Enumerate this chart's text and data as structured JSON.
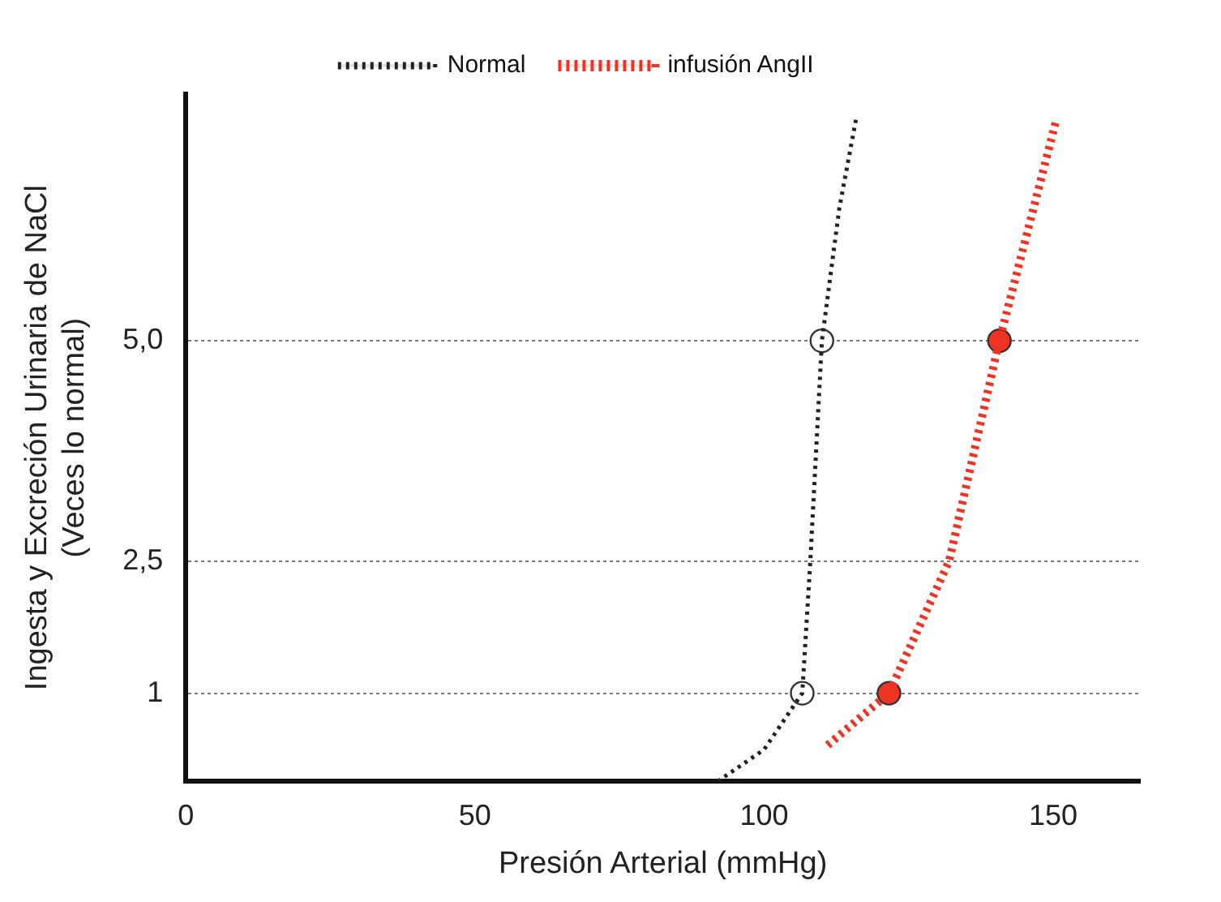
{
  "chart_data": {
    "type": "line",
    "xlabel": "Presión Arterial (mmHg)",
    "ylabel": "Ingesta y Excreción Urinaria de NaCl\n(Veces lo normal)",
    "xlim": [
      0,
      165
    ],
    "xticks": [
      0,
      50,
      100,
      150
    ],
    "ylim": [
      0,
      7.8
    ],
    "yticks": [
      1,
      {
        "value": 2.5,
        "label": "2,5"
      },
      {
        "value": 5,
        "label": "5,0"
      }
    ],
    "grid": "y",
    "legend": "top",
    "line_style": "dotted",
    "series": [
      {
        "name": "Normal",
        "color": "#222222",
        "marker": "none",
        "x": [
          92,
          100,
          106.6,
          108,
          110,
          113,
          116
        ],
        "values": [
          0,
          0.36,
          1,
          2.5,
          5,
          6.5,
          7.55
        ]
      },
      {
        "name": "infusión AngII",
        "color": "#ee3322",
        "marker": "none",
        "x": [
          111,
          121.6,
          132,
          140.7,
          150.5
        ],
        "values": [
          0.41,
          1,
          2.5,
          5,
          7.5
        ]
      },
      {
        "color": "#ffffff",
        "type": "scatter",
        "marker": "circle",
        "x": [
          106.6,
          110
        ],
        "values": [
          1,
          5
        ]
      },
      {
        "color": "#ee3322",
        "type": "scatter",
        "marker": "circle",
        "x": [
          121.6,
          140.7
        ],
        "values": [
          1,
          5
        ]
      }
    ]
  }
}
